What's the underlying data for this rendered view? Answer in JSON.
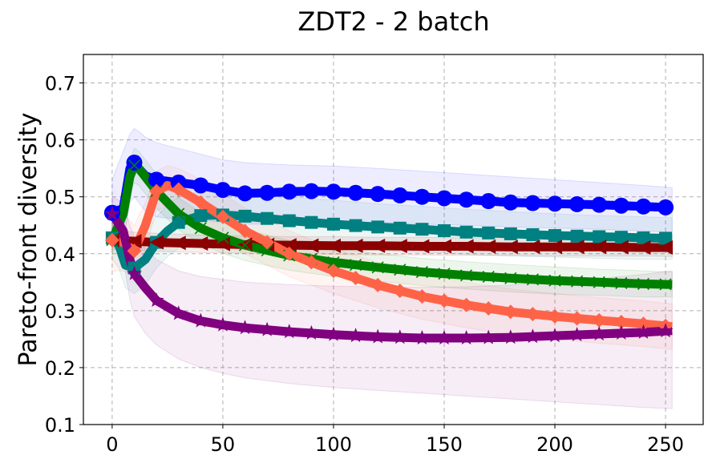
{
  "chart_data": {
    "type": "line",
    "title": "ZDT2 - 2 batch",
    "xlabel": "",
    "ylabel": "Pareto-front diversity",
    "xlim": [
      -13,
      267
    ],
    "ylim": [
      0.1,
      0.75
    ],
    "xticks": [
      0,
      50,
      100,
      150,
      200,
      250
    ],
    "yticks": [
      0.1,
      0.2,
      0.3,
      0.4,
      0.5,
      0.6,
      0.7
    ],
    "xtick_labels": [
      "0",
      "50",
      "100",
      "150",
      "200",
      "250"
    ],
    "ytick_labels": [
      "0.1",
      "0.2",
      "0.3",
      "0.4",
      "0.5",
      "0.6",
      "0.7"
    ],
    "grid": true,
    "series": [
      {
        "name": "blue-circle",
        "color": "#0000ff",
        "marker": "circle",
        "x": [
          0,
          5,
          8,
          10,
          12,
          15,
          20,
          30,
          40,
          50,
          60,
          70,
          80,
          90,
          100,
          120,
          140,
          160,
          180,
          200,
          220,
          240,
          253
        ],
        "y": [
          0.472,
          0.48,
          0.55,
          0.56,
          0.55,
          0.537,
          0.53,
          0.525,
          0.52,
          0.512,
          0.506,
          0.507,
          0.509,
          0.51,
          0.509,
          0.505,
          0.5,
          0.495,
          0.49,
          0.488,
          0.486,
          0.483,
          0.481
        ],
        "band_upper": [
          0.53,
          0.58,
          0.61,
          0.62,
          0.615,
          0.605,
          0.595,
          0.585,
          0.575,
          0.565,
          0.56,
          0.558,
          0.556,
          0.555,
          0.554,
          0.55,
          0.545,
          0.54,
          0.535,
          0.53,
          0.525,
          0.52,
          0.516
        ],
        "band_lower": [
          0.41,
          0.42,
          0.49,
          0.5,
          0.49,
          0.475,
          0.465,
          0.46,
          0.46,
          0.455,
          0.452,
          0.452,
          0.454,
          0.455,
          0.456,
          0.455,
          0.452,
          0.45,
          0.447,
          0.445,
          0.443,
          0.44,
          0.438
        ]
      },
      {
        "name": "teal-square",
        "color": "#008080",
        "marker": "square",
        "x": [
          0,
          3,
          6,
          10,
          15,
          20,
          25,
          30,
          40,
          50,
          60,
          80,
          100,
          120,
          140,
          160,
          180,
          200,
          220,
          240,
          253
        ],
        "y": [
          0.428,
          0.415,
          0.38,
          0.375,
          0.39,
          0.42,
          0.44,
          0.455,
          0.467,
          0.468,
          0.466,
          0.458,
          0.452,
          0.447,
          0.443,
          0.438,
          0.435,
          0.432,
          0.43,
          0.428,
          0.427
        ],
        "band_upper": [
          0.47,
          0.455,
          0.425,
          0.42,
          0.435,
          0.465,
          0.485,
          0.5,
          0.51,
          0.512,
          0.51,
          0.5,
          0.494,
          0.488,
          0.483,
          0.478,
          0.474,
          0.47,
          0.467,
          0.465,
          0.463
        ],
        "band_lower": [
          0.39,
          0.375,
          0.34,
          0.33,
          0.345,
          0.375,
          0.395,
          0.41,
          0.424,
          0.425,
          0.422,
          0.415,
          0.41,
          0.406,
          0.403,
          0.399,
          0.396,
          0.394,
          0.392,
          0.39,
          0.39
        ]
      },
      {
        "name": "darkred-triangle-left",
        "color": "#8b0000",
        "marker": "triangle-left",
        "x": [
          0,
          10,
          20,
          40,
          60,
          80,
          100,
          120,
          140,
          160,
          180,
          200,
          220,
          240,
          253
        ],
        "y": [
          0.424,
          0.422,
          0.42,
          0.418,
          0.416,
          0.415,
          0.414,
          0.414,
          0.413,
          0.413,
          0.412,
          0.412,
          0.412,
          0.411,
          0.411
        ],
        "band_upper": [
          0.44,
          0.438,
          0.436,
          0.433,
          0.431,
          0.43,
          0.43,
          0.429,
          0.429,
          0.428,
          0.428,
          0.428,
          0.427,
          0.427,
          0.427
        ],
        "band_lower": [
          0.408,
          0.406,
          0.404,
          0.402,
          0.401,
          0.4,
          0.399,
          0.398,
          0.398,
          0.397,
          0.397,
          0.396,
          0.396,
          0.396,
          0.395
        ]
      },
      {
        "name": "green-x",
        "color": "#008000",
        "marker": "x",
        "x": [
          0,
          5,
          8,
          10,
          12,
          15,
          20,
          30,
          40,
          50,
          60,
          80,
          100,
          120,
          140,
          160,
          180,
          200,
          220,
          240,
          253
        ],
        "y": [
          0.424,
          0.47,
          0.535,
          0.555,
          0.55,
          0.535,
          0.51,
          0.47,
          0.445,
          0.428,
          0.415,
          0.397,
          0.385,
          0.376,
          0.368,
          0.362,
          0.357,
          0.353,
          0.35,
          0.347,
          0.346
        ],
        "band_upper": [
          0.45,
          0.5,
          0.565,
          0.585,
          0.58,
          0.565,
          0.54,
          0.498,
          0.472,
          0.455,
          0.442,
          0.423,
          0.41,
          0.4,
          0.392,
          0.386,
          0.381,
          0.377,
          0.373,
          0.37,
          0.368
        ],
        "band_lower": [
          0.398,
          0.44,
          0.505,
          0.525,
          0.52,
          0.505,
          0.48,
          0.442,
          0.418,
          0.401,
          0.388,
          0.371,
          0.36,
          0.352,
          0.344,
          0.338,
          0.333,
          0.329,
          0.327,
          0.324,
          0.324
        ]
      },
      {
        "name": "tomato-diamond",
        "color": "#ff6347",
        "marker": "diamond",
        "x": [
          0,
          5,
          10,
          15,
          20,
          25,
          30,
          40,
          50,
          60,
          80,
          100,
          120,
          140,
          160,
          180,
          200,
          220,
          240,
          253
        ],
        "y": [
          0.424,
          0.42,
          0.405,
          0.45,
          0.51,
          0.52,
          0.513,
          0.49,
          0.465,
          0.44,
          0.4,
          0.37,
          0.345,
          0.325,
          0.31,
          0.298,
          0.29,
          0.283,
          0.277,
          0.272
        ],
        "band_upper": [
          0.48,
          0.47,
          0.45,
          0.49,
          0.545,
          0.555,
          0.55,
          0.53,
          0.505,
          0.48,
          0.44,
          0.41,
          0.385,
          0.365,
          0.35,
          0.338,
          0.33,
          0.323,
          0.317,
          0.312
        ],
        "band_lower": [
          0.37,
          0.37,
          0.36,
          0.41,
          0.475,
          0.485,
          0.476,
          0.45,
          0.425,
          0.4,
          0.36,
          0.33,
          0.305,
          0.285,
          0.27,
          0.258,
          0.25,
          0.243,
          0.237,
          0.232
        ]
      },
      {
        "name": "purple-star",
        "color": "#800080",
        "marker": "star",
        "x": [
          0,
          5,
          8,
          10,
          15,
          20,
          30,
          40,
          50,
          60,
          80,
          100,
          120,
          140,
          160,
          180,
          200,
          220,
          240,
          253
        ],
        "y": [
          0.47,
          0.44,
          0.39,
          0.365,
          0.34,
          0.318,
          0.295,
          0.282,
          0.275,
          0.27,
          0.263,
          0.258,
          0.254,
          0.252,
          0.252,
          0.253,
          0.256,
          0.259,
          0.262,
          0.265
        ],
        "band_upper": [
          0.5,
          0.49,
          0.45,
          0.43,
          0.41,
          0.39,
          0.37,
          0.36,
          0.355,
          0.35,
          0.346,
          0.343,
          0.342,
          0.341,
          0.342,
          0.345,
          0.35,
          0.356,
          0.364,
          0.37
        ],
        "band_lower": [
          0.44,
          0.39,
          0.32,
          0.29,
          0.26,
          0.24,
          0.215,
          0.2,
          0.19,
          0.182,
          0.172,
          0.165,
          0.16,
          0.155,
          0.15,
          0.145,
          0.14,
          0.135,
          0.13,
          0.128
        ]
      }
    ]
  }
}
